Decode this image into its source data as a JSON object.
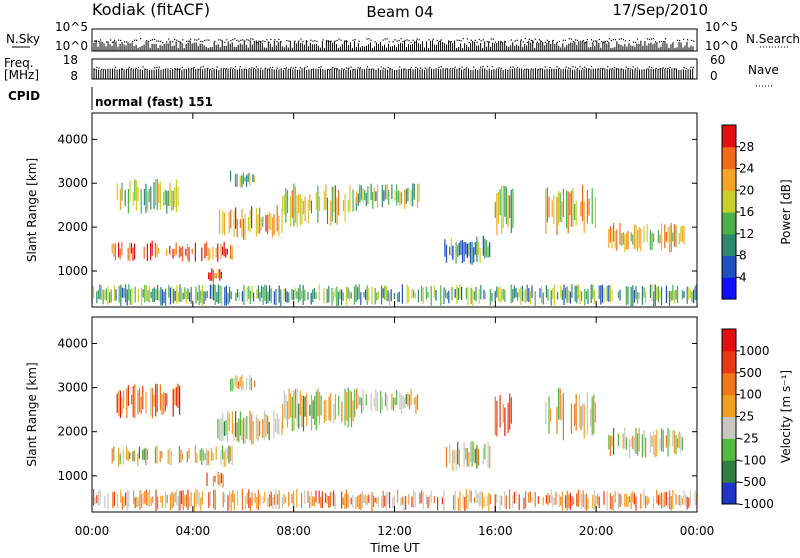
{
  "header": {
    "station": "Kodiak (fitACF)",
    "beam": "Beam 04",
    "date": "17/Sep/2010"
  },
  "top_panels": {
    "nsky_label": "N.Sky",
    "nsky_ticks": [
      "10^5",
      "10^0"
    ],
    "nsearch_label": "N.Search",
    "nsearch_ticks": [
      "10^5",
      "10^0"
    ],
    "freq_label": "Freq.",
    "freq_unit": "[MHz]",
    "freq_ticks": [
      "18",
      "8"
    ],
    "nave_label": "Nave",
    "nave_ticks": [
      "60",
      "0"
    ],
    "cpid_label": "CPID",
    "cpid_value": "normal (fast) 151"
  },
  "chart_data": [
    {
      "type": "heatmap",
      "ylabel": "Slant Range [km]",
      "xlabel": "Time UT",
      "x_ticks": [
        "00:00",
        "04:00",
        "08:00",
        "12:00",
        "16:00",
        "20:00",
        "00:00"
      ],
      "x_range_hours": [
        0,
        24
      ],
      "y_ticks": [
        "1000",
        "2000",
        "3000",
        "4000"
      ],
      "ylim": [
        180,
        4600
      ],
      "colorbar": {
        "label": "Power [dB]",
        "ticks": [
          "4",
          "8",
          "12",
          "16",
          "20",
          "24",
          "28"
        ],
        "colors": [
          "#1010ff",
          "#1f4fc0",
          "#2e8a6e",
          "#4bb24a",
          "#c8d02a",
          "#f7a325",
          "#f06a18",
          "#e01010"
        ]
      },
      "echo_regions": [
        {
          "t": [
            0.8,
            5.6
          ],
          "r": [
            1200,
            1700
          ],
          "level": 0.88
        },
        {
          "t": [
            1.0,
            3.5
          ],
          "r": [
            2300,
            3100
          ],
          "level": 0.5
        },
        {
          "t": [
            4.5,
            5.2
          ],
          "r": [
            700,
            1100
          ],
          "level": 0.9
        },
        {
          "t": [
            5.0,
            7.6
          ],
          "r": [
            1700,
            2500
          ],
          "level": 0.72
        },
        {
          "t": [
            5.5,
            6.5
          ],
          "r": [
            2900,
            3300
          ],
          "level": 0.45
        },
        {
          "t": [
            7.5,
            10.5
          ],
          "r": [
            2000,
            3000
          ],
          "level": 0.55
        },
        {
          "t": [
            10.5,
            13.0
          ],
          "r": [
            2400,
            3000
          ],
          "level": 0.45
        },
        {
          "t": [
            14.0,
            15.8
          ],
          "r": [
            1100,
            1800
          ],
          "level": 0.3
        },
        {
          "t": [
            16.0,
            16.7
          ],
          "r": [
            1800,
            3000
          ],
          "level": 0.5
        },
        {
          "t": [
            18.0,
            20.0
          ],
          "r": [
            1800,
            3000
          ],
          "level": 0.62
        },
        {
          "t": [
            20.5,
            23.5
          ],
          "r": [
            1400,
            2100
          ],
          "level": 0.6
        },
        {
          "t": [
            0.0,
            24.0
          ],
          "r": [
            200,
            700
          ],
          "level": 0.4
        }
      ]
    },
    {
      "type": "heatmap",
      "ylabel": "Slant Range [km]",
      "xlabel": "Time UT",
      "x_ticks": [
        "00:00",
        "04:00",
        "08:00",
        "12:00",
        "16:00",
        "20:00",
        "00:00"
      ],
      "x_range_hours": [
        0,
        24
      ],
      "y_ticks": [
        "1000",
        "2000",
        "3000",
        "4000"
      ],
      "ylim": [
        180,
        4600
      ],
      "colorbar": {
        "label": "Velocity [m s⁻¹]",
        "ticks": [
          "1000",
          "500",
          "100",
          "25",
          "-25",
          "-100",
          "-500",
          "-1000"
        ],
        "colors": [
          "#1e35c8",
          "#2e7f3e",
          "#55b840",
          "#c8c8c0",
          "#f0a020",
          "#f07818",
          "#e83a10",
          "#e01010"
        ]
      },
      "echo_regions": [
        {
          "t": [
            0.8,
            5.6
          ],
          "r": [
            1200,
            1700
          ],
          "level": 0.45
        },
        {
          "t": [
            1.0,
            3.5
          ],
          "r": [
            2300,
            3100
          ],
          "level": 0.7
        },
        {
          "t": [
            4.5,
            5.2
          ],
          "r": [
            700,
            1100
          ],
          "level": 0.8
        },
        {
          "t": [
            5.0,
            7.6
          ],
          "r": [
            1700,
            2500
          ],
          "level": 0.45
        },
        {
          "t": [
            5.5,
            6.5
          ],
          "r": [
            2900,
            3300
          ],
          "level": 0.45
        },
        {
          "t": [
            7.5,
            10.5
          ],
          "r": [
            2000,
            3000
          ],
          "level": 0.45
        },
        {
          "t": [
            10.5,
            13.0
          ],
          "r": [
            2400,
            3000
          ],
          "level": 0.45
        },
        {
          "t": [
            14.0,
            15.8
          ],
          "r": [
            1100,
            1800
          ],
          "level": 0.45
        },
        {
          "t": [
            16.0,
            16.7
          ],
          "r": [
            1800,
            3000
          ],
          "level": 0.75
        },
        {
          "t": [
            18.0,
            20.0
          ],
          "r": [
            1800,
            3000
          ],
          "level": 0.55
        },
        {
          "t": [
            20.5,
            23.5
          ],
          "r": [
            1400,
            2100
          ],
          "level": 0.45
        },
        {
          "t": [
            0.0,
            24.0
          ],
          "r": [
            200,
            700
          ],
          "level": 0.6
        }
      ]
    }
  ]
}
